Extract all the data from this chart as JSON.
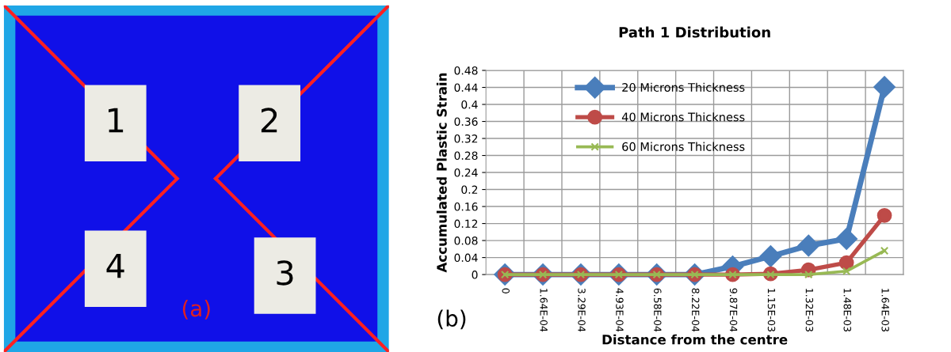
{
  "chart_data": {
    "type": "line",
    "title": "Path 1 Distribution",
    "xlabel": "Distance from the centre",
    "ylabel": "Accumulated Plastic Strain",
    "categories": [
      "0",
      "1.64E-04",
      "3.29E-04",
      "4.93E-04",
      "6.58E-04",
      "8.22E-04",
      "9.87E-04",
      "1.15E-03",
      "1.32E-03",
      "1.48E-03",
      "1.64E-03"
    ],
    "series": [
      {
        "name": "20 Microns Thickness",
        "color": "#4a7ebb",
        "marker": "diamond",
        "values": [
          0,
          0,
          0,
          0,
          0,
          0,
          0.019,
          0.043,
          0.068,
          0.084,
          0.441
        ]
      },
      {
        "name": "40 Microns Thickness",
        "color": "#be4b48",
        "marker": "circle",
        "values": [
          0,
          0,
          0,
          0,
          0,
          0,
          0,
          0.002,
          0.011,
          0.028,
          0.139
        ]
      },
      {
        "name": "60 Microns Thickness",
        "color": "#98b954",
        "marker": "cross",
        "values": [
          0,
          0,
          0,
          0,
          0,
          0,
          0,
          0,
          0,
          0.008,
          0.056
        ]
      }
    ],
    "ylim": [
      0,
      0.48
    ],
    "yticks": [
      0,
      0.04,
      0.08,
      0.12,
      0.16,
      {
        "value": 0.2,
        "label": "0.2"
      },
      0.24,
      0.28,
      0.32,
      0.36,
      {
        "value": 0.4,
        "label": "0.4"
      },
      0.44,
      0.48
    ],
    "grid": true,
    "legend": "top",
    "annotations": [
      "1",
      "2",
      "3",
      "4",
      "(a)",
      "(b)"
    ]
  }
}
